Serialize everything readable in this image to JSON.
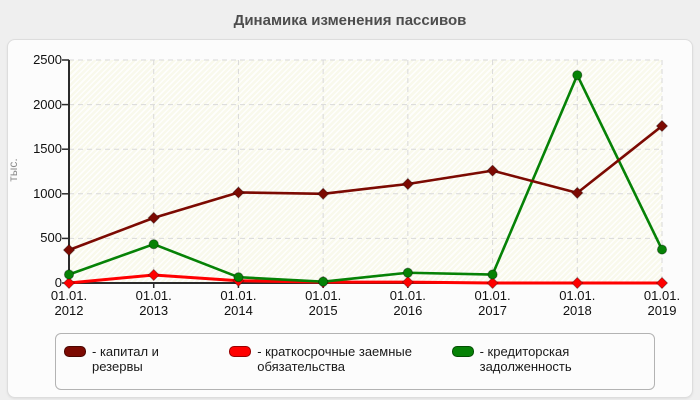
{
  "page": {
    "title": "Динамика изменения пассивов"
  },
  "chart_data": {
    "type": "line",
    "title": "Динамика изменения пассивов",
    "ylabel": "тыс.",
    "xlabel": "",
    "x_tick_prefix": "01.01.",
    "categories": [
      "2012",
      "2013",
      "2014",
      "2015",
      "2016",
      "2017",
      "2018",
      "2019"
    ],
    "ylim": [
      0,
      2500
    ],
    "y_ticks": [
      0,
      500,
      1000,
      1500,
      2000,
      2500
    ],
    "grid": true,
    "legend_position": "bottom",
    "plot_colors": {
      "axis": "#2b2b2b",
      "gridline": "#d9d9d9",
      "hatch_bg": "#f9f9ec"
    },
    "series": [
      {
        "name": "капитал и резервы",
        "color": "#7c0a02",
        "marker": "diamond",
        "values": [
          370,
          730,
          1015,
          1000,
          1110,
          1260,
          1010,
          1760
        ]
      },
      {
        "name": "краткосрочные заемные обязательства",
        "color": "#ff0000",
        "marker": "diamond",
        "values": [
          0,
          90,
          25,
          10,
          10,
          0,
          0,
          0
        ]
      },
      {
        "name": "кредиторская задолженность",
        "color": "#068206",
        "marker": "circle",
        "values": [
          95,
          435,
          65,
          15,
          115,
          95,
          2330,
          375
        ]
      }
    ]
  },
  "legend": {
    "items": [
      {
        "label": "- капитал и резервы",
        "color": "#7c0a02"
      },
      {
        "label": "- краткосрочные заемные обязательства",
        "color": "#ff0000"
      },
      {
        "label": "- кредиторская задолженность",
        "color": "#068206"
      }
    ]
  }
}
